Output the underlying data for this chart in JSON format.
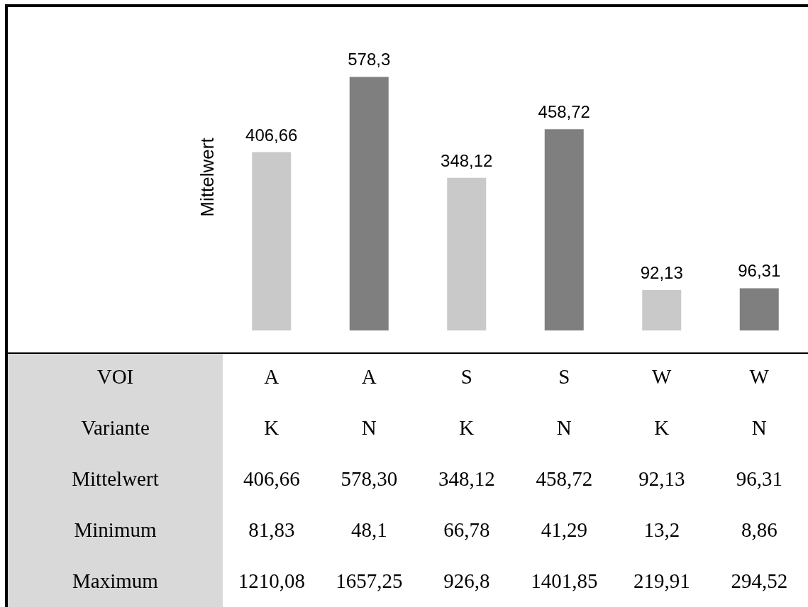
{
  "chart_data": [
    {
      "type": "bar",
      "ylabel": "Mittelwert",
      "categories": [
        null,
        null,
        null,
        null,
        null,
        null
      ],
      "values": [
        406.66,
        578.3,
        348.12,
        458.72,
        92.13,
        96.31
      ],
      "colors": [
        "#c9c9c9",
        "#7f7f7f",
        "#c9c9c9",
        "#7f7f7f",
        "#c9c9c9",
        "#7f7f7f"
      ],
      "value_labels": [
        "406,66",
        "578,3",
        "348,12",
        "458,72",
        "92,13",
        "96,31"
      ]
    },
    {
      "type": "other",
      "y_categories": [
        "VOI",
        "Variante",
        "Mittelwert",
        "Minimum",
        "Maximum"
      ],
      "cell_labels": [
        [
          "A",
          "A",
          "S",
          "S",
          "W",
          "W"
        ],
        [
          "K",
          "N",
          "K",
          "N",
          "K",
          "N"
        ],
        [
          "406,66",
          "578,30",
          "348,12",
          "458,72",
          "92,13",
          "96,31"
        ],
        [
          "81,83",
          "48,1",
          "66,78",
          "41,29",
          "13,2",
          "8,86"
        ],
        [
          "1210,08",
          "1657,25",
          "926,8",
          "1401,85",
          "219,91",
          "294,52"
        ]
      ]
    }
  ]
}
